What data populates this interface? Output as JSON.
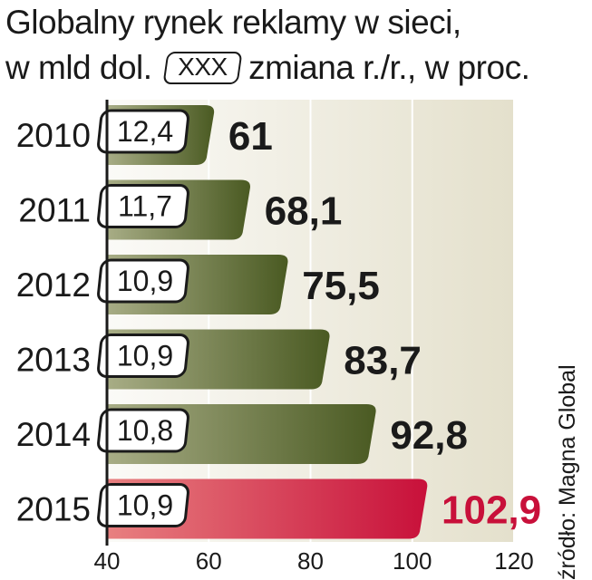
{
  "chart_data": {
    "type": "bar",
    "orientation": "horizontal",
    "title_line1": "Globalny rynek reklamy w sieci,",
    "title_line2": "w mld dol.",
    "legend_box_label": "XXX",
    "legend_text": "zmiana r./r., w proc.",
    "categories": [
      "2010",
      "2011",
      "2012",
      "2013",
      "2014",
      "2015"
    ],
    "values": [
      61,
      68.1,
      75.5,
      83.7,
      92.8,
      102.9
    ],
    "value_labels": [
      "61",
      "68,1",
      "75,5",
      "83,7",
      "92,8",
      "102,9"
    ],
    "change_labels": [
      "12,4",
      "11,7",
      "10,9",
      "10,9",
      "10,8",
      "10,9"
    ],
    "xlim": [
      40,
      120
    ],
    "xticks": [
      40,
      60,
      80,
      100,
      120
    ],
    "xtick_labels": [
      "40",
      "60",
      "80",
      "100",
      "120"
    ],
    "grid": true,
    "highlight_index": 5,
    "source": "źródło: Magna Global",
    "colors": {
      "bar_dark": "#4a5a22",
      "bar_light": "#a8ad86",
      "highlight_dark": "#c8103a",
      "highlight_light": "#e88080",
      "text": "#1a1a1a",
      "highlight_text": "#c8103a",
      "background_gradient": "#e4e0cc"
    }
  }
}
